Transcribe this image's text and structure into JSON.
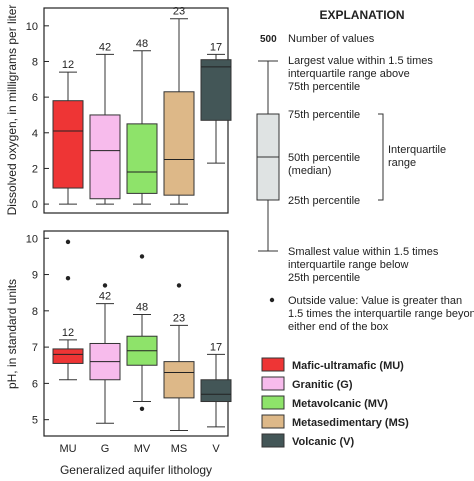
{
  "chart_data": [
    {
      "type": "box",
      "ylabel": "Dissolved oxygen, in milligrams per liter",
      "ylim": [
        -0.5,
        11
      ],
      "yticks": [
        0,
        2,
        4,
        6,
        8,
        10
      ],
      "categories": [
        "MU",
        "G",
        "MV",
        "MS",
        "V"
      ],
      "series": [
        {
          "category": "MU",
          "n": "12",
          "min": 0.0,
          "q1": 0.9,
          "median": 4.1,
          "q3": 5.8,
          "max": 7.4,
          "color": "#ee3535",
          "outliers": []
        },
        {
          "category": "G",
          "n": "42",
          "min": 0.0,
          "q1": 0.3,
          "median": 3.0,
          "q3": 5.0,
          "max": 8.4,
          "color": "#f7bbec",
          "outliers": []
        },
        {
          "category": "MV",
          "n": "48",
          "min": 0.0,
          "q1": 0.6,
          "median": 1.8,
          "q3": 4.5,
          "max": 8.6,
          "color": "#8ee36a",
          "outliers": []
        },
        {
          "category": "MS",
          "n": "23",
          "min": 0.0,
          "q1": 0.5,
          "median": 2.5,
          "q3": 6.3,
          "max": 10.4,
          "color": "#ddb888",
          "outliers": []
        },
        {
          "category": "V",
          "n": "17",
          "min": 2.3,
          "q1": 4.7,
          "median": 7.7,
          "q3": 8.1,
          "max": 8.4,
          "color": "#435657",
          "outliers": []
        }
      ]
    },
    {
      "type": "box",
      "ylabel": "pH, in standard units",
      "xlabel": "Generalized aquifer lithology",
      "ylim": [
        4.55,
        10.2
      ],
      "yticks": [
        5,
        6,
        7,
        8,
        9,
        10
      ],
      "categories": [
        "MU",
        "G",
        "MV",
        "MS",
        "V"
      ],
      "series": [
        {
          "category": "MU",
          "n": "12",
          "min": 6.1,
          "q1": 6.55,
          "median": 6.8,
          "q3": 6.95,
          "max": 7.2,
          "color": "#ee3535",
          "outliers": [
            8.9,
            9.9
          ]
        },
        {
          "category": "G",
          "n": "42",
          "min": 4.9,
          "q1": 6.1,
          "median": 6.6,
          "q3": 7.1,
          "max": 8.2,
          "color": "#f7bbec",
          "outliers": [
            8.7
          ]
        },
        {
          "category": "MV",
          "n": "48",
          "min": 5.5,
          "q1": 6.5,
          "median": 6.9,
          "q3": 7.3,
          "max": 7.9,
          "color": "#8ee36a",
          "outliers": [
            9.5,
            5.3
          ]
        },
        {
          "category": "MS",
          "n": "23",
          "min": 4.7,
          "q1": 5.6,
          "median": 6.3,
          "q3": 6.6,
          "max": 7.6,
          "color": "#ddb888",
          "outliers": [
            8.7
          ]
        },
        {
          "category": "V",
          "n": "17",
          "min": 4.8,
          "q1": 5.5,
          "median": 5.7,
          "q3": 6.1,
          "max": 6.8,
          "color": "#435657",
          "outliers": []
        }
      ]
    }
  ],
  "explanation": {
    "title": "EXPLANATION",
    "count_example": "500",
    "count_label": "Number of values",
    "largest_lines": [
      "Largest value within 1.5 times",
      "interquartile range above",
      "75th percentile"
    ],
    "p75": "75th percentile",
    "median_lines": [
      "50th percentile",
      "(median)"
    ],
    "p25": "25th percentile",
    "iqr_lines": [
      "Interquartile",
      "range"
    ],
    "smallest_lines": [
      "Smallest value within 1.5 times",
      "interquartile range below",
      "25th percentile"
    ],
    "outside_lines": [
      "Outside value: Value is greater than",
      "1.5 times the interquartile range beyond",
      "either end of the box"
    ],
    "box_color": "#dfe3e3"
  },
  "legend": [
    {
      "label": "Mafic-ultramafic (MU)",
      "color": "#ee3535"
    },
    {
      "label": "Granitic (G)",
      "color": "#f7bbec"
    },
    {
      "label": "Metavolcanic (MV)",
      "color": "#8ee36a"
    },
    {
      "label": "Metasedimentary (MS)",
      "color": "#ddb888"
    },
    {
      "label": "Volcanic (V)",
      "color": "#435657"
    }
  ]
}
